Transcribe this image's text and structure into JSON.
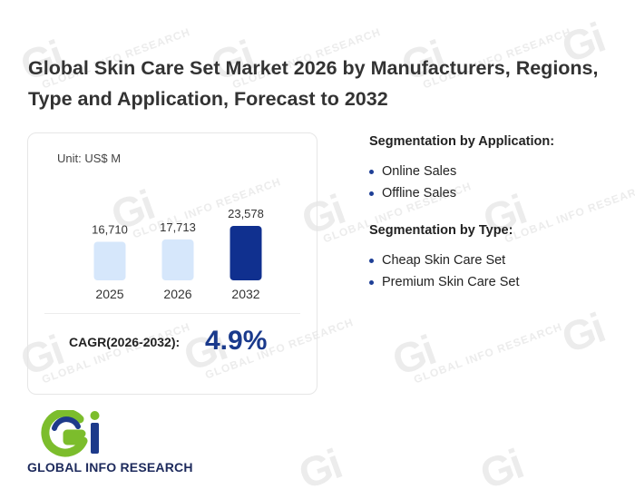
{
  "title": "Global Skin Care Set Market 2026 by Manufacturers, Regions, Type and Application, Forecast to 2032",
  "chart_data": {
    "type": "bar",
    "unit_label": "Unit: US$ M",
    "categories": [
      "2025",
      "2026",
      "2032"
    ],
    "values": [
      16710,
      17713,
      23578
    ],
    "value_labels": [
      "16,710",
      "17,713",
      "23,578"
    ],
    "colors": [
      "#d6e7fb",
      "#d6e7fb",
      "#10308f"
    ],
    "ylim": [
      0,
      23578
    ]
  },
  "cagr": {
    "label": "CAGR(2026-2032):",
    "value": "4.9%"
  },
  "segmentation": {
    "application": {
      "heading": "Segmentation by Application:",
      "items": [
        "Online Sales",
        "Offline Sales"
      ]
    },
    "type": {
      "heading": "Segmentation by Type:",
      "items": [
        "Cheap Skin Care Set",
        "Premium Skin Care Set"
      ]
    }
  },
  "logo": {
    "text": "GLOBAL INFO RESEARCH",
    "icon": "gi-logo-icon",
    "colors": {
      "green": "#7cbd2c",
      "blue": "#1d3a8a"
    }
  },
  "watermark": {
    "mark": "Gi",
    "text": "GLOBAL INFO RESEARCH"
  }
}
